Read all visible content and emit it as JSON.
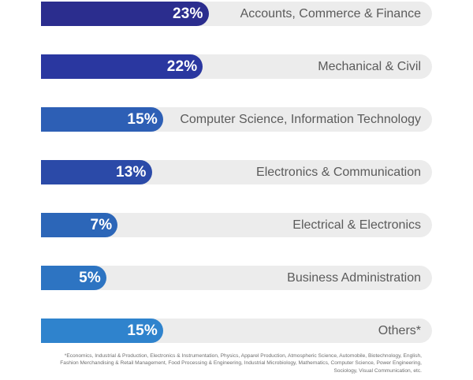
{
  "chart_data": {
    "type": "bar",
    "orientation": "horizontal",
    "categories": [
      "Accounts, Commerce & Finance",
      "Mechanical & Civil",
      "Computer Science, Information Technology",
      "Electronics & Communication",
      "Electrical & Electronics",
      "Business Administration",
      "Others*"
    ],
    "values": [
      23,
      22,
      15,
      13,
      7,
      5,
      15
    ],
    "value_labels": [
      "23%",
      "22%",
      "15%",
      "13%",
      "7%",
      "5%",
      "15%"
    ],
    "xlim": [
      0,
      100
    ],
    "grid": false,
    "legend": "none",
    "colors": [
      "#2b2d8e",
      "#2a37a0",
      "#2d5fb5",
      "#2b4aa8",
      "#2c66b8",
      "#2d74c2",
      "#2f83cd"
    ],
    "track_color": "#ececec",
    "label_color": "#5b5b5b"
  },
  "footnote": "*Economics, Industrial & Production, Electronics & Instrumentation, Physics, Apparel Production, Atmospheric Science, Automobile, Biotechnology, English, Fashion Merchandising & Retail Management, Food Processing & Engineering, Industrial Microbiology, Mathematics, Computer Science, Power Engineering, Sociology, Visual Communication, etc."
}
